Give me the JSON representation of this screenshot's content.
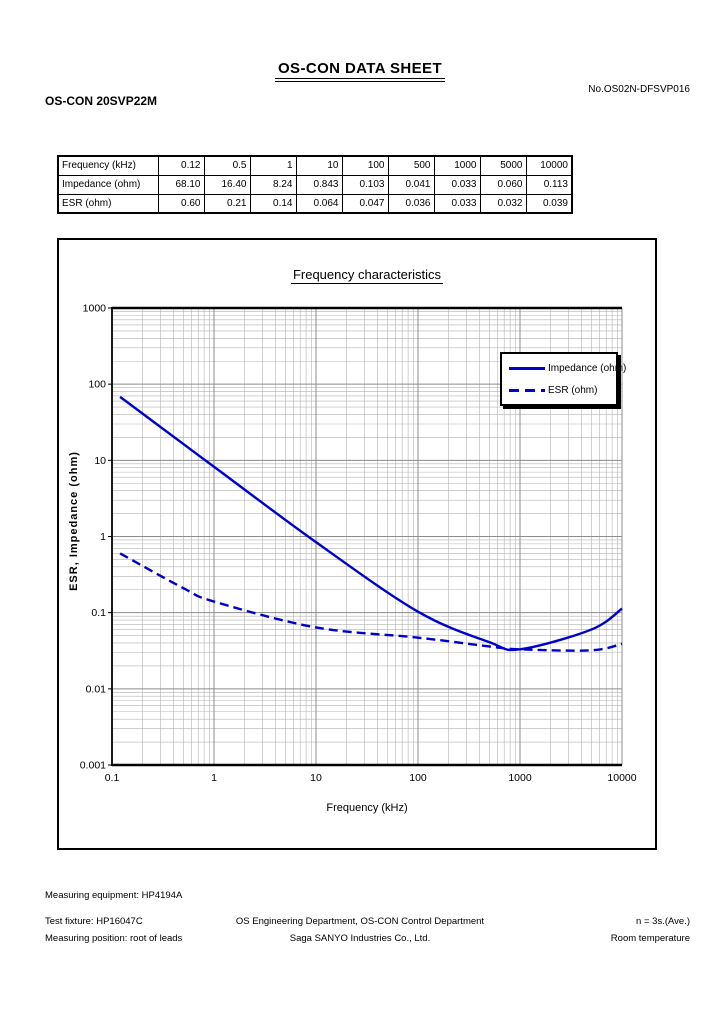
{
  "header": {
    "sheet_title": "OS-CON DATA SHEET",
    "part_number": "OS-CON 20SVP22M",
    "doc_number": "No.OS02N-DFSVP016"
  },
  "table": {
    "rows": [
      {
        "label": "Frequency (kHz)",
        "values": [
          "0.12",
          "0.5",
          "1",
          "10",
          "100",
          "500",
          "1000",
          "5000",
          "10000"
        ]
      },
      {
        "label": "Impedance (ohm)",
        "values": [
          "68.10",
          "16.40",
          "8.24",
          "0.843",
          "0.103",
          "0.041",
          "0.033",
          "0.060",
          "0.113"
        ]
      },
      {
        "label": "ESR (ohm)",
        "values": [
          "0.60",
          "0.21",
          "0.14",
          "0.064",
          "0.047",
          "0.036",
          "0.033",
          "0.032",
          "0.039"
        ]
      }
    ]
  },
  "chart_data": {
    "type": "line",
    "title": "Frequency characteristics",
    "xlabel": "Frequency (kHz)",
    "ylabel": "ESR, Impedance (ohm)",
    "x_scale": "log",
    "y_scale": "log",
    "xlim": [
      0.1,
      10000
    ],
    "ylim": [
      0.001,
      1000
    ],
    "x_ticks": [
      "0.1",
      "1",
      "10",
      "100",
      "1000",
      "10000"
    ],
    "y_ticks": [
      "1000",
      "100",
      "10",
      "1",
      "0.1",
      "0.01",
      "0.001"
    ],
    "grid": {
      "major": true,
      "minor": true
    },
    "legend_position": "upper right",
    "x": [
      0.12,
      0.5,
      1,
      10,
      100,
      500,
      1000,
      5000,
      10000
    ],
    "series": [
      {
        "name": "Impedance (ohm)",
        "style": "solid",
        "color": "#0000cc",
        "values": [
          68.1,
          16.4,
          8.24,
          0.843,
          0.103,
          0.041,
          0.033,
          0.06,
          0.113
        ]
      },
      {
        "name": "ESR (ohm)",
        "style": "dashed",
        "color": "#0000cc",
        "values": [
          0.6,
          0.21,
          0.14,
          0.064,
          0.047,
          0.036,
          0.033,
          0.032,
          0.039
        ]
      }
    ],
    "colors": {
      "line_blue": "#0000cc",
      "grid_major": "#8c8c8c",
      "grid_minor": "#b4b4b4"
    }
  },
  "footer": {
    "left": [
      "Measuring equipment: HP4194A",
      "Test fixture: HP16047C",
      "Measuring position: root of leads"
    ],
    "center": [
      "OS Engineering Department, OS-CON Control Department",
      "Saga SANYO Industries Co., Ltd."
    ],
    "right": [
      "n = 3s.(Ave.)",
      "Room temperature"
    ]
  }
}
